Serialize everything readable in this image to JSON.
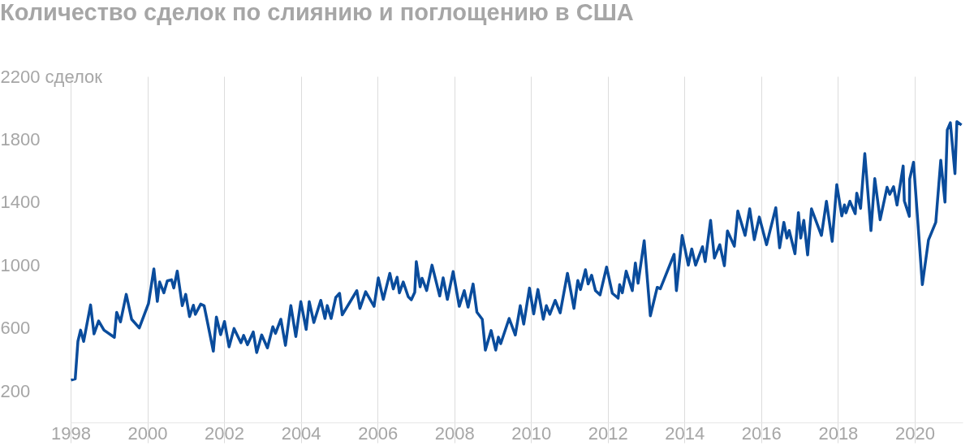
{
  "chart_data": {
    "type": "line",
    "title": "Количество сделок по слиянию и поглощению в США",
    "x": [
      1998.01,
      1998.12,
      1998.19,
      1998.26,
      1998.34,
      1998.52,
      1998.61,
      1998.73,
      1998.87,
      1999.14,
      1999.2,
      1999.3,
      1999.45,
      1999.59,
      1999.79,
      2000.03,
      2000.17,
      2000.26,
      2000.32,
      2000.43,
      2000.52,
      2000.63,
      2000.69,
      2000.78,
      2000.91,
      2001.0,
      2001.1,
      2001.2,
      2001.25,
      2001.39,
      2001.48,
      2001.72,
      2001.8,
      2001.91,
      2002.01,
      2002.13,
      2002.26,
      2002.44,
      2002.51,
      2002.61,
      2002.76,
      2002.85,
      2002.98,
      2003.13,
      2003.27,
      2003.34,
      2003.48,
      2003.6,
      2003.74,
      2003.87,
      2004.0,
      2004.14,
      2004.22,
      2004.34,
      2004.52,
      2004.63,
      2004.69,
      2004.79,
      2004.91,
      2005.01,
      2005.08,
      2005.46,
      2005.54,
      2005.69,
      2005.91,
      2006.02,
      2006.15,
      2006.32,
      2006.41,
      2006.51,
      2006.57,
      2006.67,
      2006.8,
      2006.88,
      2006.97,
      2007.01,
      2007.11,
      2007.16,
      2007.28,
      2007.42,
      2007.62,
      2007.71,
      2007.82,
      2007.97,
      2008.13,
      2008.26,
      2008.36,
      2008.49,
      2008.59,
      2008.73,
      2008.81,
      2008.96,
      2009.08,
      2009.15,
      2009.21,
      2009.43,
      2009.59,
      2009.72,
      2009.81,
      2009.96,
      2010.07,
      2010.18,
      2010.32,
      2010.4,
      2010.49,
      2010.63,
      2010.76,
      2010.95,
      2011.12,
      2011.22,
      2011.29,
      2011.42,
      2011.49,
      2011.58,
      2011.68,
      2011.8,
      2011.97,
      2012.12,
      2012.27,
      2012.31,
      2012.38,
      2012.48,
      2012.64,
      2012.72,
      2012.79,
      2012.95,
      2013.11,
      2013.29,
      2013.37,
      2013.47,
      2013.73,
      2013.79,
      2013.94,
      2014.1,
      2014.19,
      2014.29,
      2014.47,
      2014.54,
      2014.68,
      2014.78,
      2014.92,
      2015.04,
      2015.12,
      2015.3,
      2015.39,
      2015.58,
      2015.7,
      2015.82,
      2015.95,
      2016.14,
      2016.38,
      2016.48,
      2016.59,
      2016.67,
      2016.73,
      2016.88,
      2016.97,
      2017.03,
      2017.11,
      2017.21,
      2017.31,
      2017.57,
      2017.7,
      2017.85,
      2017.97,
      2018.1,
      2018.17,
      2018.21,
      2018.31,
      2018.45,
      2018.49,
      2018.59,
      2018.7,
      2018.86,
      2018.96,
      2019.1,
      2019.28,
      2019.35,
      2019.45,
      2019.54,
      2019.7,
      2019.73,
      2019.86,
      2019.87,
      2019.97,
      2020.2,
      2020.36,
      2020.55,
      2020.68,
      2020.79,
      2020.85,
      2020.93,
      2021.05,
      2021.1,
      2021.22
    ],
    "series": [
      {
        "color": "#0a4c9c",
        "values": [
          269,
          277,
          515,
          587,
          515,
          747,
          563,
          645,
          587,
          541,
          700,
          639,
          814,
          656,
          601,
          756,
          976,
          769,
          893,
          824,
          900,
          907,
          855,
          962,
          742,
          814,
          673,
          745,
          687,
          752,
          742,
          453,
          670,
          558,
          642,
          480,
          597,
          506,
          553,
          494,
          575,
          444,
          556,
          474,
          608,
          566,
          656,
          490,
          743,
          546,
          768,
          591,
          768,
          635,
          776,
          661,
          743,
          661,
          794,
          821,
          684,
          838,
          725,
          831,
          738,
          919,
          782,
          948,
          849,
          923,
          824,
          893,
          799,
          780,
          828,
          1022,
          862,
          917,
          838,
          1000,
          804,
          919,
          782,
          959,
          738,
          838,
          733,
          880,
          701,
          656,
          460,
          584,
          460,
          542,
          501,
          661,
          556,
          742,
          625,
          854,
          690,
          845,
          656,
          742,
          687,
          776,
          696,
          948,
          725,
          902,
          845,
          971,
          880,
          936,
          838,
          811,
          988,
          821,
          790,
          876,
          824,
          962,
          838,
          1014,
          885,
          1155,
          678,
          859,
          850,
          911,
          1069,
          838,
          1189,
          1000,
          1103,
          1000,
          1117,
          1022,
          1285,
          1045,
          1130,
          996,
          1217,
          1120,
          1344,
          1189,
          1358,
          1162,
          1306,
          1130,
          1365,
          1110,
          1272,
          1172,
          1220,
          1072,
          1334,
          1172,
          1285,
          1065,
          1358,
          1189,
          1406,
          1151,
          1512,
          1313,
          1383,
          1332,
          1406,
          1327,
          1458,
          1361,
          1709,
          1220,
          1550,
          1289,
          1495,
          1450,
          1499,
          1382,
          1630,
          1409,
          1310,
          1547,
          1654,
          876,
          1160,
          1272,
          1667,
          1401,
          1860,
          1905,
          1582,
          1912,
          1891
        ]
      }
    ],
    "xlim": [
      1998,
      2021.25
    ],
    "xticks": [
      1998,
      2000,
      2002,
      2004,
      2006,
      2008,
      2010,
      2012,
      2014,
      2016,
      2018,
      2020
    ],
    "ylim": [
      0,
      2200
    ],
    "yticks": [
      200,
      600,
      1000,
      1400,
      1800,
      {
        "value": 2200,
        "label": "2200 сделок"
      }
    ],
    "grid": "x",
    "line_style": "solid"
  }
}
